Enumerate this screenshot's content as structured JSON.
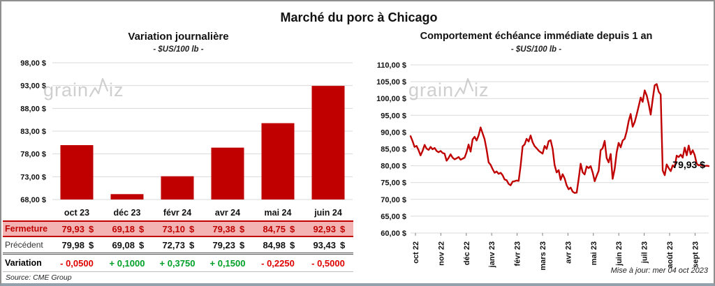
{
  "page": {
    "title": "Marché du porc à Chicago",
    "update_note": "Mise à jour: mer 04 oct 2023",
    "source_note": "Source: CME Group",
    "watermark": {
      "part1": "grain",
      "part2": "iz"
    }
  },
  "colors": {
    "accent_red": "#C00000",
    "table_highlight": "#F4B3B3",
    "negative": "#E00000",
    "positive": "#00A028",
    "gridline": "#D9D9D9",
    "tick": "#808080",
    "watermark": "#C7C7C7",
    "frame_border": "#8F8F8F",
    "frame_bottom": "#93A1AD"
  },
  "chart_data": [
    {
      "type": "bar",
      "title": "Variation journalière",
      "subtitle": "- $US/100 lb -",
      "categories": [
        "oct 23",
        "déc 23",
        "févr 24",
        "avr 24",
        "mai 24",
        "juin 24"
      ],
      "values": [
        79.93,
        69.18,
        73.1,
        79.38,
        84.75,
        92.93
      ],
      "ylim": [
        68,
        98
      ],
      "ytick_values": [
        98,
        93,
        88,
        83,
        78,
        73,
        68
      ],
      "ytick_labels": [
        "98,00 $",
        "93,00 $",
        "88,00 $",
        "83,00 $",
        "78,00 $",
        "73,00 $",
        "68,00 $"
      ],
      "grid": true,
      "bar_color": "#C00000"
    },
    {
      "type": "line",
      "title": "Comportement échéance immédiate depuis 1 an",
      "subtitle": "- $US/100 lb -",
      "x_labels": [
        "oct 22",
        "nov 22",
        "déc 22",
        "janv 23",
        "févr 23",
        "mars 23",
        "avr 23",
        "mai 23",
        "juin 23",
        "juil 23",
        "août 23",
        "sept 23"
      ],
      "ylim": [
        60,
        110
      ],
      "ytick_values": [
        110,
        105,
        100,
        95,
        90,
        85,
        80,
        75,
        70,
        65,
        60
      ],
      "ytick_labels": [
        "110,00 $",
        "105,00 $",
        "100,00 $",
        "95,00 $",
        "90,00 $",
        "85,00 $",
        "80,00 $",
        "75,00 $",
        "70,00 $",
        "65,00 $",
        "60,00 $"
      ],
      "grid": true,
      "line_color": "#C00000",
      "annotation": {
        "text": "79,93 $",
        "value": 79.93
      },
      "values": [
        88.8,
        87.3,
        85.6,
        85.9,
        84.6,
        83.1,
        84.4,
        86.2,
        85.1,
        84.7,
        85.6,
        84.9,
        85.3,
        84.4,
        84.0,
        84.4,
        83.8,
        83.6,
        81.5,
        82.3,
        83.4,
        82.4,
        81.9,
        82.2,
        82.6,
        81.8,
        82.1,
        82.4,
        84.0,
        86.3,
        84.2,
        87.8,
        88.6,
        87.5,
        89.0,
        91.4,
        89.6,
        87.9,
        84.8,
        81.0,
        80.3,
        79.0,
        77.9,
        78.3,
        77.6,
        77.9,
        77.2,
        75.9,
        75.7,
        74.6,
        74.2,
        75.3,
        75.4,
        75.6,
        75.5,
        80.0,
        85.8,
        86.3,
        88.0,
        87.2,
        89.0,
        87.0,
        85.8,
        85.2,
        84.5,
        84.0,
        83.6,
        85.9,
        85.0,
        87.3,
        87.6,
        85.0,
        80.2,
        78.0,
        78.7,
        75.8,
        77.5,
        76.2,
        74.2,
        73.0,
        73.5,
        72.3,
        71.9,
        72.0,
        76.0,
        80.6,
        78.0,
        77.4,
        79.8,
        79.3,
        79.9,
        78.0,
        75.4,
        77.0,
        78.5,
        84.6,
        85.2,
        87.4,
        82.3,
        81.0,
        83.5,
        76.1,
        79.0,
        84.0,
        86.8,
        85.5,
        87.5,
        88.0,
        90.2,
        93.3,
        95.4,
        91.6,
        93.0,
        95.2,
        97.7,
        100.3,
        99.0,
        102.4,
        100.9,
        98.4,
        95.2,
        99.8,
        103.9,
        104.3,
        102.0,
        101.2,
        78.6,
        77.2,
        80.4,
        79.3,
        78.4,
        80.1,
        79.6,
        83.0,
        82.6,
        83.3,
        82.4,
        85.4,
        83.1,
        86.0,
        83.4,
        84.6,
        83.2,
        80.6,
        80.1,
        80.3,
        80.0,
        79.9,
        80.0,
        79.9
      ]
    }
  ],
  "table": {
    "currency": "$",
    "columns": [
      "oct 23",
      "déc 23",
      "févr 24",
      "avr 24",
      "mai 24",
      "juin 24"
    ],
    "rows": [
      {
        "label": "Fermeture",
        "style": "fermeture",
        "values": [
          "79,93",
          "69,18",
          "73,10",
          "79,38",
          "84,75",
          "92,93"
        ]
      },
      {
        "label": "Précédent",
        "style": "precedent",
        "values": [
          "79,98",
          "69,08",
          "72,73",
          "79,23",
          "84,98",
          "93,43"
        ]
      },
      {
        "label": "Variation",
        "style": "variation",
        "values": [
          "- 0,0500",
          "+ 0,1000",
          "+ 0,3750",
          "+ 0,1500",
          "- 0,2250",
          "- 0,5000"
        ],
        "signs": [
          "neg",
          "pos",
          "pos",
          "pos",
          "neg",
          "neg"
        ]
      }
    ]
  }
}
